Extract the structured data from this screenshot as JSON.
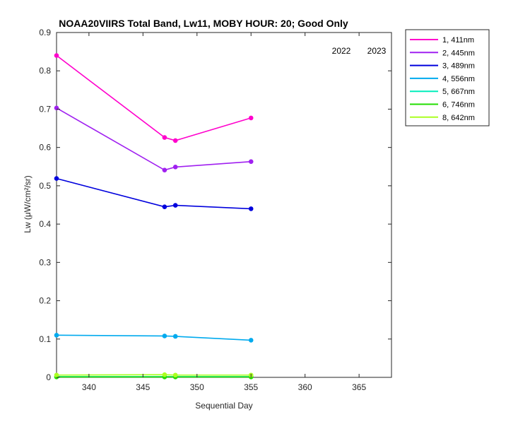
{
  "chart_data": {
    "type": "line",
    "title": "NOAA20VIIRS Total Band,  Lw11, MOBY HOUR: 20;  Good Only",
    "xlabel": "Sequential Day",
    "ylabel": "Lw (μW/cm²/sr)",
    "xlim": [
      337,
      368
    ],
    "ylim": [
      0,
      0.9
    ],
    "xticks": [
      340,
      345,
      350,
      355,
      360,
      365
    ],
    "yticks": [
      0,
      0.1,
      0.2,
      0.3,
      0.4,
      0.5,
      0.6,
      0.7,
      0.8,
      0.9
    ],
    "grid": false,
    "legend_position": "outside-top-right",
    "annotations": [
      "2022",
      "2023"
    ],
    "series": [
      {
        "name": "1, 411nm",
        "color": "#ff00cc",
        "x": [
          337,
          347,
          348,
          355
        ],
        "y": [
          0.84,
          0.626,
          0.618,
          0.677
        ]
      },
      {
        "name": "2, 445nm",
        "color": "#a020f0",
        "x": [
          337,
          347,
          348,
          355
        ],
        "y": [
          0.703,
          0.541,
          0.549,
          0.563
        ]
      },
      {
        "name": "3, 489nm",
        "color": "#0000dd",
        "x": [
          337,
          347,
          348,
          355
        ],
        "y": [
          0.519,
          0.445,
          0.449,
          0.44
        ]
      },
      {
        "name": "4, 556nm",
        "color": "#00aaee",
        "x": [
          337,
          347,
          348,
          355
        ],
        "y": [
          0.11,
          0.108,
          0.107,
          0.097
        ]
      },
      {
        "name": "5, 667nm",
        "color": "#00eebb",
        "x": [
          337,
          347,
          348,
          355
        ],
        "y": [
          0.002,
          0.002,
          0.002,
          0.002
        ]
      },
      {
        "name": "6, 746nm",
        "color": "#22dd00",
        "x": [
          337,
          347,
          348,
          355
        ],
        "y": [
          0.001,
          0.001,
          0.001,
          0.001
        ]
      },
      {
        "name": "8, 642nm",
        "color": "#aaff22",
        "x": [
          337,
          347,
          348,
          355
        ],
        "y": [
          0.006,
          0.007,
          0.006,
          0.006
        ]
      }
    ]
  }
}
